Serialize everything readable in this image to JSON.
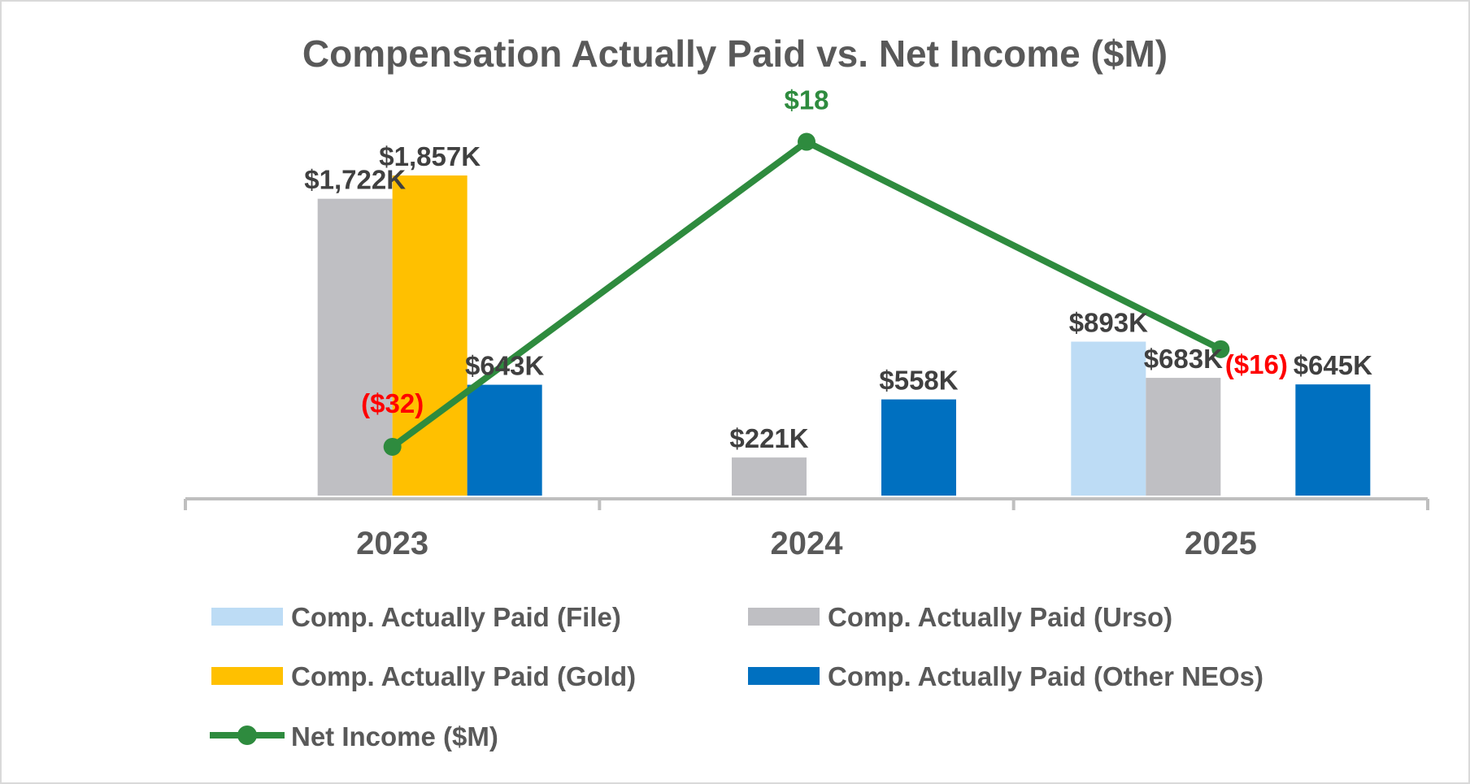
{
  "chart_data": {
    "type": "bar",
    "title": "Compensation Actually Paid vs. Net Income ($M)",
    "categories": [
      "2023",
      "2024",
      "2025"
    ],
    "bar_unit": "$K",
    "bar_ylim": [
      0,
      2300
    ],
    "series": [
      {
        "name": "Comp. Actually Paid (File)",
        "color": "#bddcf5",
        "values": [
          null,
          null,
          893
        ],
        "labels": [
          "",
          "",
          "$893K"
        ]
      },
      {
        "name": "Comp. Actually Paid (Urso)",
        "color": "#bfbfc3",
        "values": [
          1722,
          221,
          683
        ],
        "labels": [
          "$1,722K",
          "$221K",
          "$683K"
        ]
      },
      {
        "name": "Comp. Actually Paid (Gold)",
        "color": "#ffc000",
        "values": [
          1857,
          null,
          null
        ],
        "labels": [
          "$1,857K",
          "",
          ""
        ]
      },
      {
        "name": "Comp. Actually Paid (Other NEOs)",
        "color": "#0070c0",
        "values": [
          643,
          558,
          645
        ],
        "labels": [
          "$643K",
          "$558K",
          "$645K"
        ]
      }
    ],
    "line_series": {
      "name": "Net Income ($M)",
      "color": "#2e8b3e",
      "values": [
        -32,
        18,
        -16
      ],
      "labels": [
        "($32)",
        "$18",
        "($16)"
      ],
      "label_colors": [
        "#ff0000",
        "#2e8b3e",
        "#ff0000"
      ],
      "ylim": [
        -40,
        25
      ]
    },
    "legend_position": "bottom",
    "grid": false
  }
}
